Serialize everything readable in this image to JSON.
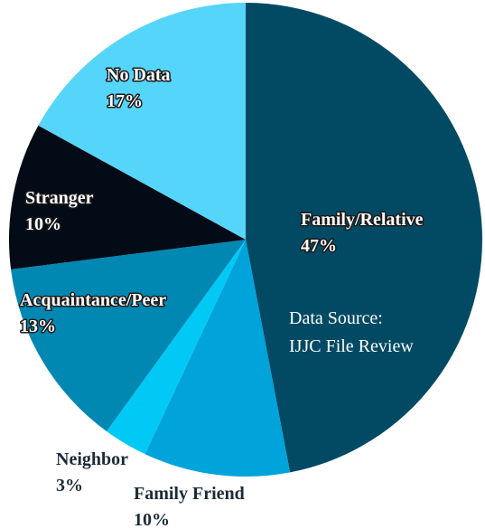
{
  "chart_data": {
    "type": "pie",
    "categories": [
      "Family/Relative",
      "Family Friend",
      "Neighbor",
      "Acquaintance/Peer",
      "Stranger",
      "No Data"
    ],
    "values": [
      47,
      10,
      3,
      13,
      10,
      17
    ],
    "value_labels": [
      "47%",
      "10%",
      "3%",
      "13%",
      "10%",
      "17%"
    ],
    "colors": [
      "#024a64",
      "#00a3da",
      "#00c9f6",
      "#0088b3",
      "#030b17",
      "#56d5fb"
    ],
    "annotation": [
      "Data Source:",
      "IJJC File Review"
    ]
  }
}
